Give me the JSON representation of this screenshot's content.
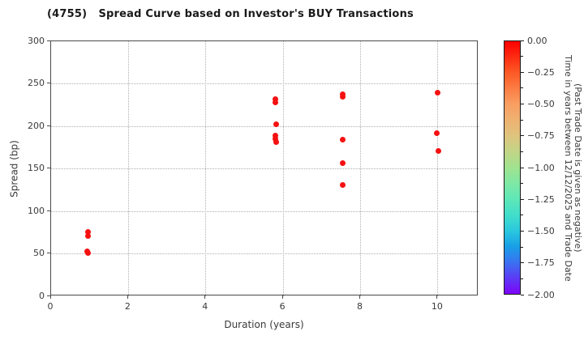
{
  "title": "(4755)   Spread Curve based on Investor's BUY Transactions",
  "chart_data": {
    "type": "scatter",
    "title": "(4755)   Spread Curve based on Investor's BUY Transactions",
    "xlabel": "Duration (years)",
    "ylabel": "Spread (bp)",
    "xlim": [
      0,
      11.05
    ],
    "ylim": [
      0,
      300
    ],
    "xticks": [
      0,
      2,
      4,
      6,
      8,
      10
    ],
    "yticks": [
      0,
      50,
      100,
      150,
      200,
      250,
      300
    ],
    "grid": "dotted",
    "legend_position": "none",
    "marker_color": "#f51111",
    "points": [
      {
        "duration": 0.95,
        "spread": 76,
        "time_value": 0.0
      },
      {
        "duration": 0.95,
        "spread": 71,
        "time_value": 0.0
      },
      {
        "duration": 0.94,
        "spread": 53,
        "time_value": 0.0
      },
      {
        "duration": 0.96,
        "spread": 51,
        "time_value": 0.0
      },
      {
        "duration": 5.79,
        "spread": 232,
        "time_value": 0.0
      },
      {
        "duration": 5.79,
        "spread": 228,
        "time_value": 0.0
      },
      {
        "duration": 5.81,
        "spread": 202,
        "time_value": 0.0
      },
      {
        "duration": 5.79,
        "spread": 189,
        "time_value": 0.0
      },
      {
        "duration": 5.79,
        "spread": 185,
        "time_value": 0.0
      },
      {
        "duration": 5.81,
        "spread": 181,
        "time_value": 0.0
      },
      {
        "duration": 7.53,
        "spread": 238,
        "time_value": 0.0
      },
      {
        "duration": 7.53,
        "spread": 235,
        "time_value": 0.0
      },
      {
        "duration": 7.53,
        "spread": 184,
        "time_value": 0.0
      },
      {
        "duration": 7.53,
        "spread": 157,
        "time_value": 0.0
      },
      {
        "duration": 7.53,
        "spread": 131,
        "time_value": 0.0
      },
      {
        "duration": 9.99,
        "spread": 240,
        "time_value": 0.0
      },
      {
        "duration": 9.96,
        "spread": 192,
        "time_value": 0.0
      },
      {
        "duration": 10.02,
        "spread": 171,
        "time_value": 0.0
      }
    ],
    "colorbar": {
      "label_line1": "Time in years between 12/12/2025 and Trade Date",
      "label_line2": "(Past Trade Date is given as negative)",
      "tick_labels": [
        "0.00",
        "−0.25",
        "−0.50",
        "−0.75",
        "−1.00",
        "−1.25",
        "−1.50",
        "−1.75",
        "−2.00"
      ],
      "range": [
        0.0,
        -2.0
      ],
      "gradient": [
        "#fe0000",
        "#fd2c12",
        "#fc5a26",
        "#fb7d44",
        "#f99f63",
        "#eeb271",
        "#dfc47e",
        "#c2d586",
        "#a0e38f",
        "#7ee8a4",
        "#5fe7b7",
        "#41decb",
        "#2bc8de",
        "#189fe6",
        "#3a72f1",
        "#5b3bf5",
        "#7e04f8"
      ]
    }
  }
}
